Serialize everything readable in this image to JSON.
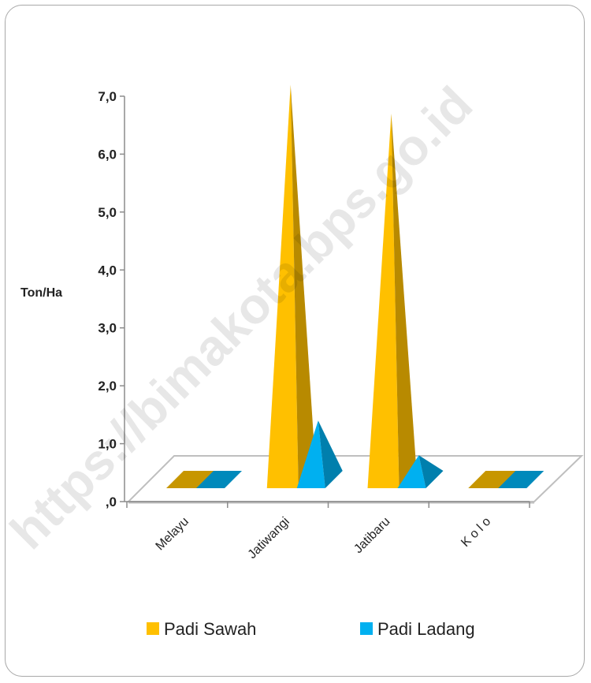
{
  "chart_data": {
    "type": "bar",
    "style": "3d-pyramid",
    "title": "",
    "xlabel": "",
    "ylabel": "Ton/Ha",
    "categories": [
      "Melayu",
      "Jatiwangi",
      "Jatibaru",
      "K o l o"
    ],
    "series": [
      {
        "name": "Padi Sawah",
        "values": [
          0,
          7.2,
          6.7,
          0
        ],
        "color": "#FFC000"
      },
      {
        "name": "Padi Ladang",
        "values": [
          0,
          1.4,
          0.8,
          0
        ],
        "color": "#00B0F0"
      }
    ],
    "ylim": [
      0,
      7
    ],
    "yticks": [
      "7,0",
      "6,0",
      "5,0",
      "4,0",
      "3,0",
      "2,0",
      "1,0",
      ",0"
    ],
    "ytick_values": [
      7,
      6,
      5,
      4,
      3,
      2,
      1,
      0
    ],
    "grid": false,
    "legend": "bottom"
  },
  "watermark": "https://bimakota.bps.go.id"
}
